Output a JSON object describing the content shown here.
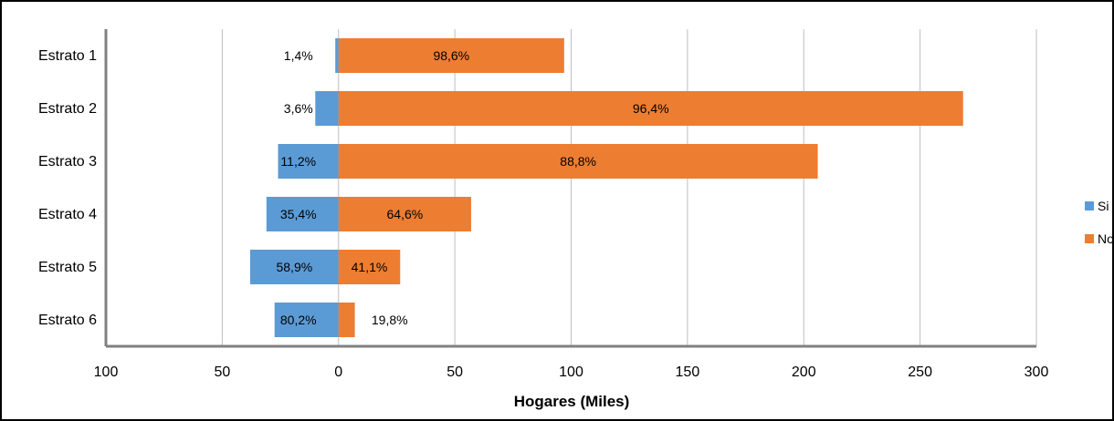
{
  "chart_data": {
    "type": "bar",
    "orientation": "horizontal",
    "stacking": "diverging",
    "categories": [
      "Estrato 1",
      "Estrato 2",
      "Estrato 3",
      "Estrato 4",
      "Estrato 5",
      "Estrato 6"
    ],
    "series": [
      {
        "name": "Si",
        "color": "#5B9BD5",
        "direction": "left",
        "values": [
          1.4,
          10,
          26,
          31,
          38,
          27.5
        ],
        "labels": [
          "1,4%",
          "3,6%",
          "11,2%",
          "35,4%",
          "58,9%",
          "80,2%"
        ]
      },
      {
        "name": "No",
        "color": "#ED7D31",
        "direction": "right",
        "values": [
          97,
          268.5,
          206,
          57,
          26.5,
          7
        ],
        "labels": [
          "98,6%",
          "96,4%",
          "88,8%",
          "64,6%",
          "41,1%",
          "19,8%"
        ]
      }
    ],
    "xlabel": "Hogares (Miles)",
    "xlim": [
      -100,
      300
    ],
    "xticks": [
      -100,
      -50,
      0,
      50,
      100,
      150,
      200,
      250,
      300
    ],
    "xtick_labels": [
      "100",
      "50",
      "0",
      "50",
      "100",
      "150",
      "200",
      "250",
      "300"
    ],
    "grid": "vertical",
    "legend_position": "right"
  }
}
